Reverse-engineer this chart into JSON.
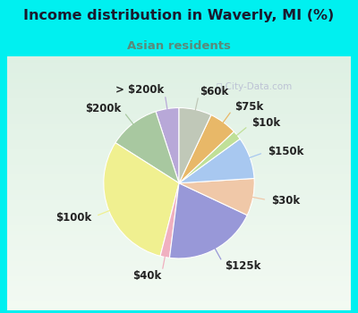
{
  "title": "Income distribution in Waverly, MI (%)",
  "subtitle": "Asian residents",
  "title_color": "#1a1a2e",
  "subtitle_color": "#5a8a7a",
  "bg_cyan": "#00f0f0",
  "bg_chart": "#e0f0e8",
  "watermark": "City-Data.com",
  "labels": [
    "> $200k",
    "$200k",
    "$100k",
    "$40k",
    "$125k",
    "$30k",
    "$150k",
    "$10k",
    "$75k",
    "$60k"
  ],
  "values": [
    5,
    11,
    30,
    2,
    20,
    8,
    9,
    2,
    6,
    7
  ],
  "colors": [
    "#b8a8d8",
    "#a8c8a0",
    "#f0f090",
    "#f0b0c0",
    "#9898d8",
    "#f0c8a8",
    "#a8c8f0",
    "#c0e098",
    "#e8b868",
    "#c0c8b8"
  ],
  "startangle": 90,
  "label_fontsize": 8.5,
  "figsize": [
    4.0,
    3.5
  ],
  "dpi": 100
}
